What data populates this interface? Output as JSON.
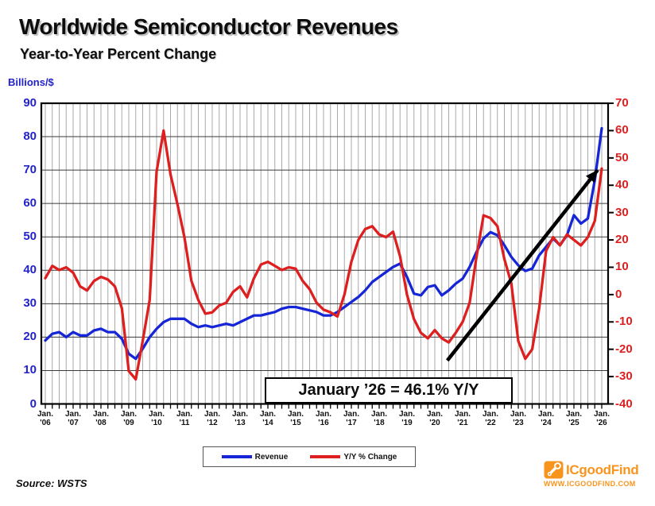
{
  "title": "Worldwide Semiconductor Revenues",
  "subtitle": "Year-to-Year Percent Change",
  "left_axis": {
    "unit_label": "Billions/$",
    "color": "#2222cc",
    "ticks": [
      "90",
      "80",
      "70",
      "60",
      "50",
      "40",
      "30",
      "20",
      "10",
      "0"
    ]
  },
  "right_axis": {
    "color": "#dd1f1f",
    "ticks": [
      "70",
      "60",
      "50",
      "40",
      "30",
      "20",
      "10",
      "0",
      "-10",
      "-20",
      "-30",
      "-40"
    ]
  },
  "x_axis": {
    "month_label": "Jan.",
    "years": [
      "'06",
      "'07",
      "'08",
      "'09",
      "'10",
      "'11",
      "'12",
      "'13",
      "'14",
      "'15",
      "'16",
      "'17",
      "'18",
      "'19",
      "'20",
      "'21",
      "'22",
      "'23",
      "'24",
      "'25",
      "'26"
    ]
  },
  "annotation": {
    "text": "January ’26 = 46.1% Y/Y"
  },
  "legend": [
    {
      "label": "Revenue",
      "color": "#1626d6"
    },
    {
      "label": "Y/Y % Change",
      "color": "#dd1f1f"
    }
  ],
  "source": "Source: WSTS",
  "logo": {
    "name": "ICgoodFind",
    "url_text": "WWW.ICGOODFIND.COM",
    "color": "#f7941d"
  },
  "chart_data": {
    "type": "line",
    "title": "Worldwide Semiconductor Revenues - Year-to-Year Percent Change",
    "x_start_year": 2006,
    "points_per_year": 4,
    "x_tick_labels": [
      "Jan. '06",
      "Jan. '07",
      "Jan. '08",
      "Jan. '09",
      "Jan. '10",
      "Jan. '11",
      "Jan. '12",
      "Jan. '13",
      "Jan. '14",
      "Jan. '15",
      "Jan. '16",
      "Jan. '17",
      "Jan. '18",
      "Jan. '19",
      "Jan. '20",
      "Jan. '21",
      "Jan. '22",
      "Jan. '23",
      "Jan. '24",
      "Jan. '25",
      "Jan. '26"
    ],
    "left_ylabel": "Billions/$",
    "left_ylim": [
      0,
      90
    ],
    "right_ylabel": "Y/Y % Change",
    "right_ylim": [
      -40,
      70
    ],
    "grid": "quarterly vertical, every 10 units horizontal",
    "legend_position": "bottom center",
    "series": [
      {
        "name": "Revenue",
        "axis": "left",
        "color": "#1626d6",
        "values": [
          19,
          21,
          21.5,
          20,
          21.5,
          20.5,
          20.5,
          22,
          22.5,
          21.5,
          21.5,
          19.5,
          15,
          13.5,
          16.5,
          20,
          22.5,
          24.5,
          25.5,
          25.5,
          25.5,
          24,
          23,
          23.5,
          23,
          23.5,
          24,
          23.5,
          24.5,
          25.5,
          26.5,
          26.5,
          27,
          27.5,
          28.5,
          29,
          29,
          28.5,
          28,
          27.5,
          26.5,
          26.5,
          27.5,
          29,
          30.5,
          32,
          34,
          36.5,
          38,
          39.5,
          41,
          42,
          38,
          33,
          32.5,
          35,
          35.5,
          32.5,
          34,
          36,
          37.5,
          41,
          45.5,
          49.5,
          51.4,
          50.5,
          47.5,
          44,
          41.5,
          39.8,
          40.5,
          44.5,
          47,
          49.5,
          47.5,
          50.5,
          56.5,
          54,
          55.5,
          67,
          82.5
        ]
      },
      {
        "name": "Y/Y % Change",
        "axis": "right",
        "color": "#dd1f1f",
        "values": [
          6,
          10.5,
          9,
          10,
          8,
          3,
          1.5,
          5,
          6.5,
          5.5,
          3,
          -5,
          -28,
          -31,
          -17,
          -2,
          45,
          60,
          44,
          33,
          21,
          5,
          -2,
          -7,
          -6.5,
          -4,
          -3,
          1,
          3,
          -1,
          6,
          11,
          12,
          10.5,
          9,
          10,
          9.5,
          5,
          2,
          -3,
          -5.5,
          -6.5,
          -8,
          0,
          12,
          20,
          24,
          25,
          22,
          21,
          23,
          14,
          0,
          -9,
          -14,
          -16,
          -13,
          -16,
          -17.5,
          -14,
          -10,
          -3,
          14,
          29,
          28,
          25,
          13,
          4,
          -17,
          -23.5,
          -20,
          -5,
          16,
          21,
          18,
          22,
          20,
          18,
          21,
          27,
          46.1
        ]
      }
    ],
    "annotations": [
      {
        "text": "January '26 = 46.1% Y/Y",
        "arrow": {
          "from_year": 2020.45,
          "from_left_value": 13,
          "to_year": 2025.85,
          "to_left_value": 70
        }
      }
    ]
  }
}
